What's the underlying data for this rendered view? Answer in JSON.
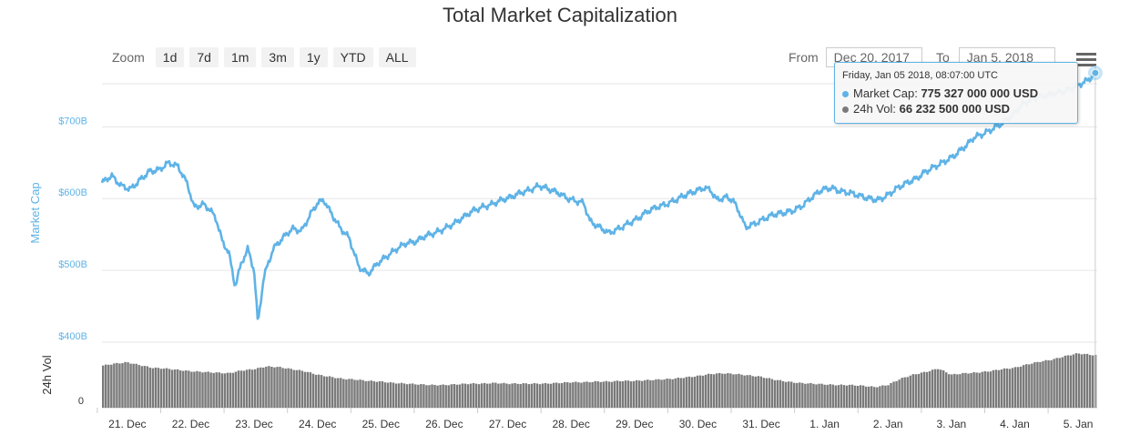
{
  "chart_data": {
    "type": "line",
    "title": "Total Market Capitalization",
    "ylabel": "Market Cap",
    "ylabel_volume": "24h Vol",
    "ylim": [
      400,
      760
    ],
    "y_ticks": [
      "$400B",
      "$500B",
      "$600B",
      "$700B"
    ],
    "y_tick_values": [
      400,
      500,
      600,
      700
    ],
    "volume_y_ticks": [
      "0"
    ],
    "x_ticks": [
      "21. Dec",
      "22. Dec",
      "23. Dec",
      "24. Dec",
      "25. Dec",
      "26. Dec",
      "27. Dec",
      "28. Dec",
      "29. Dec",
      "30. Dec",
      "31. Dec",
      "1. Jan",
      "2. Jan",
      "3. Jan",
      "4. Jan",
      "5. Jan"
    ],
    "x_range_days": [
      20.6,
      36.3
    ],
    "series": [
      {
        "name": "Market Cap",
        "units": "billion USD",
        "color": "#5fb3e6",
        "points": [
          [
            20.6,
            622
          ],
          [
            20.75,
            632
          ],
          [
            20.9,
            618
          ],
          [
            21.05,
            613
          ],
          [
            21.2,
            626
          ],
          [
            21.35,
            638
          ],
          [
            21.5,
            640
          ],
          [
            21.65,
            650
          ],
          [
            21.8,
            645
          ],
          [
            21.95,
            620
          ],
          [
            22.05,
            588
          ],
          [
            22.2,
            592
          ],
          [
            22.3,
            585
          ],
          [
            22.4,
            572
          ],
          [
            22.5,
            540
          ],
          [
            22.6,
            525
          ],
          [
            22.7,
            478
          ],
          [
            22.8,
            510
          ],
          [
            22.9,
            530
          ],
          [
            23.0,
            500
          ],
          [
            23.06,
            425
          ],
          [
            23.15,
            490
          ],
          [
            23.3,
            530
          ],
          [
            23.45,
            545
          ],
          [
            23.6,
            558
          ],
          [
            23.75,
            555
          ],
          [
            23.9,
            580
          ],
          [
            24.0,
            594
          ],
          [
            24.1,
            598
          ],
          [
            24.2,
            582
          ],
          [
            24.35,
            560
          ],
          [
            24.5,
            545
          ],
          [
            24.65,
            505
          ],
          [
            24.8,
            495
          ],
          [
            24.95,
            510
          ],
          [
            25.1,
            520
          ],
          [
            25.25,
            530
          ],
          [
            25.4,
            538
          ],
          [
            25.55,
            540
          ],
          [
            25.7,
            548
          ],
          [
            25.85,
            552
          ],
          [
            26.0,
            558
          ],
          [
            26.15,
            565
          ],
          [
            26.3,
            574
          ],
          [
            26.45,
            583
          ],
          [
            26.6,
            588
          ],
          [
            26.75,
            592
          ],
          [
            26.9,
            598
          ],
          [
            27.05,
            602
          ],
          [
            27.2,
            608
          ],
          [
            27.35,
            612
          ],
          [
            27.5,
            618
          ],
          [
            27.65,
            613
          ],
          [
            27.8,
            608
          ],
          [
            27.95,
            600
          ],
          [
            28.1,
            596
          ],
          [
            28.2,
            594
          ],
          [
            28.3,
            568
          ],
          [
            28.45,
            560
          ],
          [
            28.6,
            552
          ],
          [
            28.75,
            558
          ],
          [
            28.9,
            565
          ],
          [
            29.05,
            572
          ],
          [
            29.2,
            582
          ],
          [
            29.35,
            588
          ],
          [
            29.5,
            592
          ],
          [
            29.65,
            598
          ],
          [
            29.8,
            605
          ],
          [
            29.95,
            610
          ],
          [
            30.1,
            615
          ],
          [
            30.2,
            612
          ],
          [
            30.3,
            598
          ],
          [
            30.45,
            602
          ],
          [
            30.55,
            598
          ],
          [
            30.65,
            582
          ],
          [
            30.75,
            560
          ],
          [
            30.9,
            565
          ],
          [
            31.05,
            572
          ],
          [
            31.2,
            578
          ],
          [
            31.35,
            580
          ],
          [
            31.5,
            583
          ],
          [
            31.65,
            590
          ],
          [
            31.8,
            602
          ],
          [
            31.95,
            612
          ],
          [
            32.1,
            615
          ],
          [
            32.25,
            610
          ],
          [
            32.4,
            608
          ],
          [
            32.55,
            604
          ],
          [
            32.7,
            600
          ],
          [
            32.85,
            598
          ],
          [
            33.0,
            605
          ],
          [
            33.15,
            615
          ],
          [
            33.3,
            622
          ],
          [
            33.45,
            628
          ],
          [
            33.6,
            638
          ],
          [
            33.75,
            645
          ],
          [
            33.9,
            652
          ],
          [
            34.05,
            660
          ],
          [
            34.15,
            668
          ],
          [
            34.25,
            675
          ],
          [
            34.35,
            685
          ],
          [
            34.5,
            690
          ],
          [
            34.65,
            697
          ],
          [
            34.8,
            705
          ],
          [
            34.95,
            715
          ],
          [
            35.1,
            730
          ],
          [
            35.25,
            738
          ],
          [
            35.4,
            742
          ],
          [
            35.55,
            745
          ],
          [
            35.7,
            748
          ],
          [
            35.85,
            752
          ],
          [
            36.0,
            758
          ],
          [
            36.15,
            765
          ],
          [
            36.22,
            770
          ],
          [
            36.27,
            775
          ]
        ]
      },
      {
        "name": "24h Vol",
        "units": "billion USD",
        "color": "#7a7a7a",
        "points": [
          [
            20.6,
            61
          ],
          [
            20.8,
            64
          ],
          [
            21.0,
            66
          ],
          [
            21.2,
            62
          ],
          [
            21.4,
            58
          ],
          [
            21.6,
            57
          ],
          [
            21.8,
            55
          ],
          [
            22.0,
            53
          ],
          [
            22.2,
            52
          ],
          [
            22.4,
            51
          ],
          [
            22.6,
            50
          ],
          [
            22.8,
            54
          ],
          [
            23.0,
            56
          ],
          [
            23.2,
            60
          ],
          [
            23.4,
            59
          ],
          [
            23.6,
            56
          ],
          [
            23.8,
            53
          ],
          [
            24.0,
            48
          ],
          [
            24.2,
            45
          ],
          [
            24.4,
            42
          ],
          [
            24.6,
            41
          ],
          [
            24.8,
            39
          ],
          [
            25.0,
            38
          ],
          [
            25.2,
            36
          ],
          [
            25.4,
            35
          ],
          [
            25.6,
            34
          ],
          [
            25.8,
            33
          ],
          [
            26.0,
            33
          ],
          [
            26.2,
            34
          ],
          [
            26.4,
            35
          ],
          [
            26.6,
            35
          ],
          [
            26.8,
            36
          ],
          [
            27.0,
            35
          ],
          [
            27.2,
            35
          ],
          [
            27.4,
            35
          ],
          [
            27.6,
            35
          ],
          [
            27.8,
            36
          ],
          [
            28.0,
            37
          ],
          [
            28.2,
            37
          ],
          [
            28.4,
            38
          ],
          [
            28.6,
            38
          ],
          [
            28.8,
            39
          ],
          [
            29.0,
            39
          ],
          [
            29.2,
            40
          ],
          [
            29.4,
            41
          ],
          [
            29.6,
            42
          ],
          [
            29.8,
            44
          ],
          [
            30.0,
            46
          ],
          [
            30.2,
            49
          ],
          [
            30.4,
            50
          ],
          [
            30.6,
            49
          ],
          [
            30.8,
            47
          ],
          [
            31.0,
            45
          ],
          [
            31.2,
            41
          ],
          [
            31.4,
            38
          ],
          [
            31.6,
            36
          ],
          [
            31.8,
            35
          ],
          [
            32.0,
            34
          ],
          [
            32.2,
            33
          ],
          [
            32.4,
            33
          ],
          [
            32.6,
            32
          ],
          [
            32.8,
            30
          ],
          [
            33.0,
            33
          ],
          [
            33.2,
            42
          ],
          [
            33.4,
            48
          ],
          [
            33.6,
            52
          ],
          [
            33.8,
            57
          ],
          [
            34.0,
            48
          ],
          [
            34.2,
            50
          ],
          [
            34.4,
            51
          ],
          [
            34.6,
            53
          ],
          [
            34.8,
            56
          ],
          [
            35.0,
            58
          ],
          [
            35.2,
            63
          ],
          [
            35.4,
            67
          ],
          [
            35.6,
            70
          ],
          [
            35.8,
            75
          ],
          [
            36.0,
            79
          ],
          [
            36.2,
            77
          ],
          [
            36.3,
            76
          ]
        ]
      }
    ],
    "grid": true,
    "tooltip": {
      "date": "Friday, Jan 05 2018, 08:07:00 UTC",
      "rows": [
        {
          "label": "Market Cap:",
          "value": "775 327 000 000 USD",
          "color": "#5fb3e6"
        },
        {
          "label": "24h Vol:",
          "value": "66 232 500 000 USD",
          "color": "#7a7a7a"
        }
      ]
    }
  },
  "controls": {
    "zoom_label": "Zoom",
    "zoom_buttons": [
      "1d",
      "7d",
      "1m",
      "3m",
      "1y",
      "YTD",
      "ALL"
    ],
    "from_label": "From",
    "from_value": "Dec 20, 2017",
    "to_label": "To",
    "to_value": "Jan 5, 2018",
    "menu_icon": "hamburger-menu-icon"
  }
}
